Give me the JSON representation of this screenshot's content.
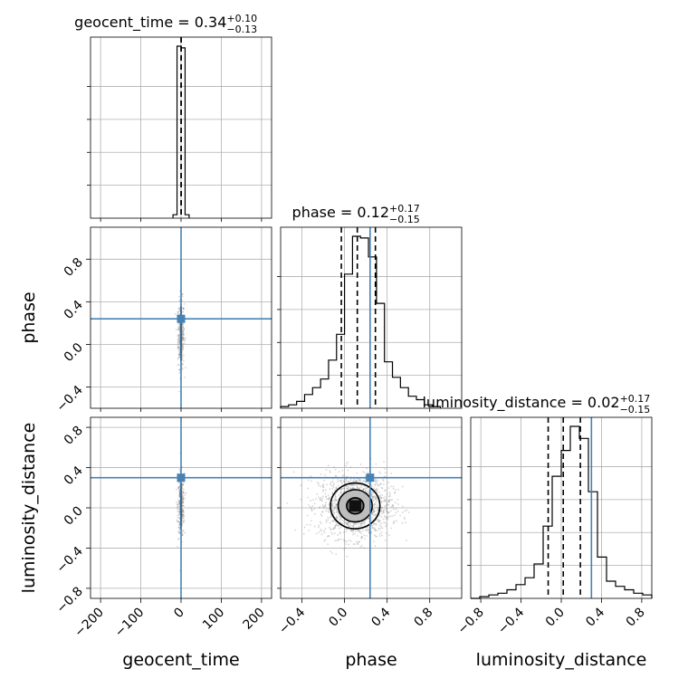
{
  "chart_data": {
    "type": "corner",
    "parameters": [
      "geocent_time",
      "phase",
      "luminosity_distance"
    ],
    "titles": [
      {
        "name": "geocent_time",
        "median": "0.34",
        "plus": "+0.10",
        "minus": "−0.13"
      },
      {
        "name": "phase",
        "median": "0.12",
        "plus": "+0.17",
        "minus": "−0.15"
      },
      {
        "name": "luminosity_distance",
        "median": "0.02",
        "plus": "+0.17",
        "minus": "−0.15"
      }
    ],
    "axes": {
      "geocent_time": {
        "range": [
          -225,
          225
        ],
        "ticks": [
          -200,
          -100,
          0,
          100,
          200
        ],
        "tick_labels": [
          "−200",
          "−100",
          "0",
          "100",
          "200"
        ]
      },
      "phase": {
        "range": [
          -0.6,
          1.1
        ],
        "ticks": [
          -0.4,
          0.0,
          0.4,
          0.8
        ],
        "tick_labels": [
          "−0.4",
          "0.0",
          "0.4",
          "0.8"
        ]
      },
      "luminosity_distance": {
        "range": [
          -0.9,
          0.9
        ],
        "ticks": [
          -0.8,
          -0.4,
          0.0,
          0.4,
          0.8
        ],
        "tick_labels": [
          "−0.8",
          "−0.4",
          "0.0",
          "0.4",
          "0.8"
        ]
      }
    },
    "truths": {
      "geocent_time": 0,
      "phase": 0.24,
      "luminosity_distance": 0.3
    },
    "quantiles": {
      "geocent_time": [
        0.21,
        0.34,
        0.44
      ],
      "phase": [
        -0.03,
        0.12,
        0.29
      ],
      "luminosity_distance": [
        -0.13,
        0.02,
        0.19
      ]
    },
    "histograms": {
      "geocent_time": {
        "edges": [
          -20,
          -10,
          0,
          10,
          20
        ],
        "counts": [
          0.02,
          1.0,
          0.99,
          0.02
        ]
      },
      "phase": {
        "edges": [
          -0.6,
          -0.525,
          -0.45,
          -0.375,
          -0.3,
          -0.225,
          -0.15,
          -0.075,
          0.0,
          0.075,
          0.15,
          0.225,
          0.3,
          0.375,
          0.45,
          0.525,
          0.6,
          0.675,
          0.75,
          0.825,
          0.9
        ],
        "counts": [
          0.01,
          0.02,
          0.04,
          0.08,
          0.12,
          0.17,
          0.28,
          0.43,
          0.78,
          1.0,
          0.99,
          0.88,
          0.61,
          0.27,
          0.18,
          0.12,
          0.07,
          0.05,
          0.02,
          0.01
        ]
      },
      "luminosity_distance": {
        "edges": [
          -0.9,
          -0.81,
          -0.72,
          -0.63,
          -0.54,
          -0.45,
          -0.36,
          -0.27,
          -0.18,
          -0.09,
          0.0,
          0.09,
          0.18,
          0.27,
          0.36,
          0.45,
          0.54,
          0.63,
          0.72,
          0.81,
          0.9
        ],
        "counts": [
          0.0,
          0.01,
          0.02,
          0.03,
          0.05,
          0.08,
          0.12,
          0.2,
          0.42,
          0.71,
          0.86,
          1.0,
          0.93,
          0.62,
          0.24,
          0.1,
          0.07,
          0.05,
          0.03,
          0.02
        ]
      }
    },
    "density_peaks": {
      "phase_vs_geocent_time": {
        "x": 0,
        "y": 0.1
      },
      "luminosity_distance_vs_geocent_time": {
        "x": 0,
        "y": 0.02
      },
      "luminosity_distance_vs_phase": {
        "x": 0.1,
        "y": 0.02
      }
    },
    "grid": true
  }
}
